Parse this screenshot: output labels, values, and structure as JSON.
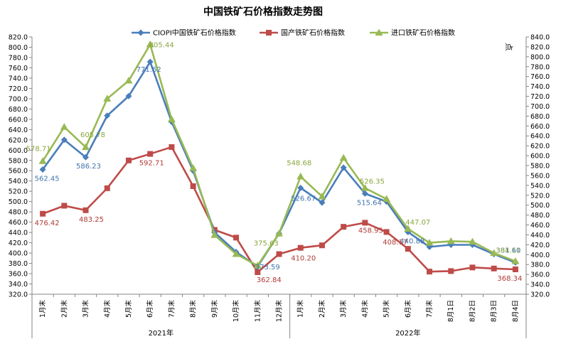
{
  "chart_data": {
    "type": "line",
    "title": "中国铁矿石价格指数走势图",
    "y_unit_right": "点",
    "ylim_left": [
      320,
      820
    ],
    "ylim_right": [
      320,
      840
    ],
    "ytick_step": 20,
    "legend_position": "top",
    "grid": false,
    "categories": [
      "1月末",
      "2月末",
      "3月末",
      "4月末",
      "5月末",
      "6月末",
      "7月末",
      "8月末",
      "9月末",
      "10月末",
      "11月末",
      "12月末",
      "1月末",
      "2月末",
      "3月末",
      "4月末",
      "5月末",
      "6月末",
      "7月末",
      "8月1日",
      "8月2日",
      "8月3日",
      "8月4日"
    ],
    "year_groups": [
      {
        "label": "2021年",
        "start": 0,
        "end": 11
      },
      {
        "label": "2022年",
        "start": 12,
        "end": 22
      }
    ],
    "series": [
      {
        "name": "CIOPI中国铁矿石价格指数",
        "color": "#4a7ebb",
        "marker": "diamond",
        "values": [
          562.45,
          620,
          586.23,
          667,
          705,
          771.62,
          655,
          560,
          440,
          402,
          373.59,
          438,
          526.67,
          498,
          566,
          515.64,
          500,
          440.88,
          412,
          416,
          416,
          398,
          381.6
        ]
      },
      {
        "name": "国产铁矿石价格指数",
        "color": "#be4b48",
        "marker": "square",
        "values": [
          476.42,
          492,
          483.25,
          526,
          580,
          592.71,
          606,
          530,
          445,
          430,
          362.84,
          398,
          410.2,
          415,
          451,
          458.95,
          441,
          408.17,
          364,
          365,
          372,
          370,
          368.34
        ]
      },
      {
        "name": "进口铁矿石价格指数",
        "color": "#98b954",
        "marker": "triangle",
        "values": [
          578.71,
          645,
          605.78,
          700,
          735,
          805.44,
          660,
          565,
          435,
          398,
          375.63,
          438,
          548.68,
          510,
          585,
          526.35,
          505,
          447.07,
          420,
          423,
          422,
          400,
          384.11
        ]
      }
    ],
    "data_labels": [
      {
        "series": 0,
        "index": 0,
        "text": "562.45",
        "color": "#3f74ad"
      },
      {
        "series": 0,
        "index": 2,
        "text": "586.23",
        "color": "#3f74ad"
      },
      {
        "series": 0,
        "index": 5,
        "text": "771.62",
        "color": "#3f74ad"
      },
      {
        "series": 0,
        "index": 10,
        "text": "373.59",
        "color": "#3f74ad"
      },
      {
        "series": 0,
        "index": 12,
        "text": "526.67",
        "color": "#3f74ad"
      },
      {
        "series": 0,
        "index": 15,
        "text": "515.64",
        "color": "#3f74ad"
      },
      {
        "series": 0,
        "index": 17,
        "text": "440.88",
        "color": "#3f74ad"
      },
      {
        "series": 0,
        "index": 22,
        "text": "381.60",
        "color": "#3f74ad"
      },
      {
        "series": 1,
        "index": 0,
        "text": "476.42",
        "color": "#b03a36"
      },
      {
        "series": 1,
        "index": 2,
        "text": "483.25",
        "color": "#b03a36"
      },
      {
        "series": 1,
        "index": 5,
        "text": "592.71",
        "color": "#b03a36"
      },
      {
        "series": 1,
        "index": 10,
        "text": "362.84",
        "color": "#b03a36"
      },
      {
        "series": 1,
        "index": 12,
        "text": "410.20",
        "color": "#b03a36"
      },
      {
        "series": 1,
        "index": 15,
        "text": "458.95",
        "color": "#b03a36"
      },
      {
        "series": 1,
        "index": 17,
        "text": "408.17",
        "color": "#b03a36"
      },
      {
        "series": 1,
        "index": 22,
        "text": "368.34",
        "color": "#b03a36"
      },
      {
        "series": 2,
        "index": 0,
        "text": "578.71",
        "color": "#8aa53e"
      },
      {
        "series": 2,
        "index": 2,
        "text": "605.78",
        "color": "#8aa53e"
      },
      {
        "series": 2,
        "index": 5,
        "text": "805.44",
        "color": "#8aa53e"
      },
      {
        "series": 2,
        "index": 10,
        "text": "375.63",
        "color": "#8aa53e"
      },
      {
        "series": 2,
        "index": 12,
        "text": "548.68",
        "color": "#8aa53e"
      },
      {
        "series": 2,
        "index": 15,
        "text": "526.35",
        "color": "#8aa53e"
      },
      {
        "series": 2,
        "index": 17,
        "text": "447.07",
        "color": "#8aa53e"
      },
      {
        "series": 2,
        "index": 22,
        "text": "384.11",
        "color": "#8aa53e"
      }
    ]
  }
}
